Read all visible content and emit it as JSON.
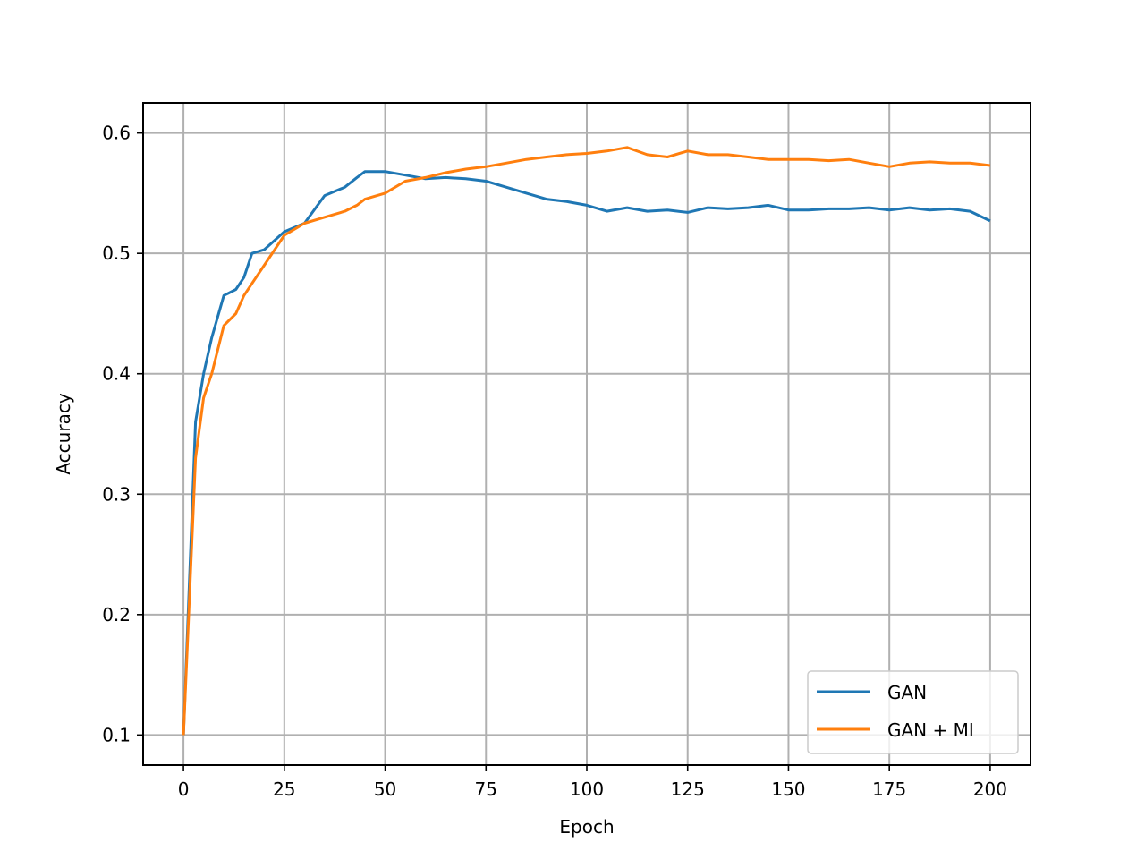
{
  "chart_data": {
    "type": "line",
    "xlabel": "Epoch",
    "ylabel": "Accuracy",
    "xlim": [
      -10,
      210
    ],
    "ylim": [
      0.075,
      0.625
    ],
    "xticks": [
      0,
      25,
      50,
      75,
      100,
      125,
      150,
      175,
      200
    ],
    "yticks": [
      0.1,
      0.2,
      0.3,
      0.4,
      0.5,
      0.6
    ],
    "grid": true,
    "legend_position": "lower-right",
    "x": [
      0,
      3,
      5,
      7,
      10,
      13,
      15,
      17,
      20,
      25,
      30,
      35,
      40,
      43,
      45,
      50,
      55,
      60,
      65,
      70,
      75,
      80,
      85,
      90,
      95,
      100,
      105,
      110,
      115,
      120,
      125,
      130,
      135,
      140,
      145,
      150,
      155,
      160,
      165,
      170,
      175,
      180,
      185,
      190,
      195,
      200
    ],
    "series": [
      {
        "name": "GAN",
        "color": "#1f77b4",
        "values": [
          0.1,
          0.36,
          0.4,
          0.43,
          0.465,
          0.47,
          0.48,
          0.5,
          0.503,
          0.518,
          0.525,
          0.548,
          0.555,
          0.563,
          0.568,
          0.568,
          0.565,
          0.562,
          0.563,
          0.562,
          0.56,
          0.555,
          0.55,
          0.545,
          0.543,
          0.54,
          0.535,
          0.538,
          0.535,
          0.536,
          0.534,
          0.538,
          0.537,
          0.538,
          0.54,
          0.536,
          0.536,
          0.537,
          0.537,
          0.538,
          0.536,
          0.538,
          0.536,
          0.537,
          0.535,
          0.527
        ]
      },
      {
        "name": "GAN + MI",
        "color": "#ff7f0e",
        "values": [
          0.1,
          0.33,
          0.38,
          0.4,
          0.44,
          0.45,
          0.465,
          0.475,
          0.49,
          0.515,
          0.525,
          0.53,
          0.535,
          0.54,
          0.545,
          0.55,
          0.56,
          0.563,
          0.567,
          0.57,
          0.572,
          0.575,
          0.578,
          0.58,
          0.582,
          0.583,
          0.585,
          0.588,
          0.582,
          0.58,
          0.585,
          0.582,
          0.582,
          0.58,
          0.578,
          0.578,
          0.578,
          0.577,
          0.578,
          0.575,
          0.572,
          0.575,
          0.576,
          0.575,
          0.575,
          0.573
        ]
      }
    ]
  }
}
